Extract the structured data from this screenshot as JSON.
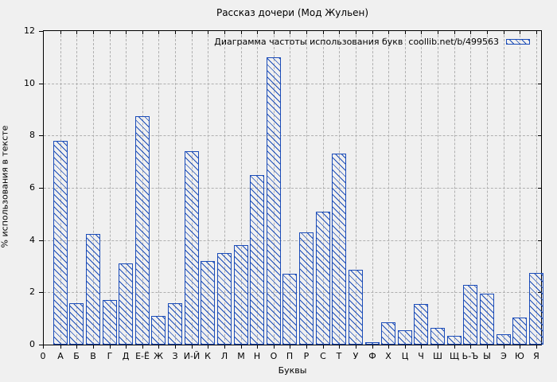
{
  "title": "Рассказ дочери (Мод Жульен)",
  "axes": {
    "x_title": "Буквы",
    "y_title": "% использования в тексте",
    "origin_label": "0",
    "y_tick_labels": [
      "0",
      "2",
      "4",
      "6",
      "8",
      "10",
      "12"
    ]
  },
  "legend": {
    "label": "Диаграмма частоты использования букв  coollib.net/b/499563",
    "swatch": "blue-hatched-rectangle"
  },
  "colors": {
    "bar_blue": "#1b4cb8",
    "background": "#f0f0f0",
    "grid_gray": "#b0b0b0",
    "axis_black": "#000000"
  },
  "chart_data": {
    "type": "bar",
    "title": "Рассказ дочери (Мод Жульен)",
    "legend_label": "Диаграмма частоты использования букв  coollib.net/b/499563",
    "xlabel": "Буквы",
    "ylabel": "% использования в тексте",
    "ylim": [
      0,
      12
    ],
    "yticks": [
      0,
      2,
      4,
      6,
      8,
      10,
      12
    ],
    "grid": true,
    "legend_position": "top-right",
    "bar_style": "diagonal-hatch",
    "categories": [
      "А",
      "Б",
      "В",
      "Г",
      "Д",
      "Е-Ё",
      "Ж",
      "З",
      "И-Й",
      "К",
      "Л",
      "М",
      "Н",
      "О",
      "П",
      "Р",
      "С",
      "Т",
      "У",
      "Ф",
      "Х",
      "Ц",
      "Ч",
      "Ш",
      "Щ",
      "Ь-Ъ",
      "Ы",
      "Э",
      "Ю",
      "Я"
    ],
    "values": [
      7.8,
      1.6,
      4.25,
      1.7,
      3.1,
      8.75,
      1.1,
      1.6,
      7.4,
      3.2,
      3.5,
      3.8,
      6.5,
      11.0,
      2.7,
      4.3,
      5.1,
      7.3,
      2.85,
      0.1,
      0.85,
      0.55,
      1.55,
      0.65,
      0.35,
      2.3,
      1.95,
      0.4,
      1.05,
      2.75
    ]
  }
}
